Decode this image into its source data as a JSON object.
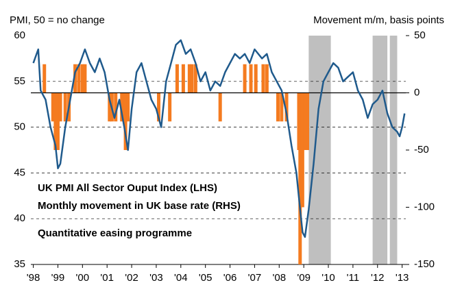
{
  "chart_data": {
    "type": "combo",
    "y_label": "PMI, 50 = no change",
    "y2_label": "Movement m/m, basis points",
    "xlim": [
      1997.9,
      2013.15
    ],
    "xticks": [
      {
        "value": 1998,
        "label": "'98"
      },
      {
        "value": 1999,
        "label": "'99"
      },
      {
        "value": 2000,
        "label": "'00"
      },
      {
        "value": 2001,
        "label": "'01"
      },
      {
        "value": 2002,
        "label": "'02"
      },
      {
        "value": 2003,
        "label": "'03"
      },
      {
        "value": 2004,
        "label": "'04"
      },
      {
        "value": 2005,
        "label": "'05"
      },
      {
        "value": 2006,
        "label": "'06"
      },
      {
        "value": 2007,
        "label": "'07"
      },
      {
        "value": 2008,
        "label": "'08"
      },
      {
        "value": 2009,
        "label": "'09"
      },
      {
        "value": 2010,
        "label": "'10"
      },
      {
        "value": 2011,
        "label": "'11"
      },
      {
        "value": 2012,
        "label": "'12"
      },
      {
        "value": 2013,
        "label": "'13"
      }
    ],
    "ylim": [
      35,
      60
    ],
    "yticks": [
      35,
      40,
      45,
      50,
      55,
      60
    ],
    "y2lim": [
      -150,
      50
    ],
    "y2ticks": [
      -150,
      -100,
      -50,
      0,
      50
    ],
    "grid": true,
    "shaded": {
      "name": "Quantitative easing programme",
      "color": "#bfbfbf",
      "periods": [
        [
          2009.2,
          2010.1
        ],
        [
          2011.8,
          2012.4
        ],
        [
          2012.5,
          2012.8
        ]
      ]
    },
    "series": [
      {
        "name": "UK PMI All Sector Ouput Index (LHS)",
        "type": "line",
        "color": "#1f5a8c",
        "axis": "y",
        "x": [
          1998.0,
          1998.2,
          1998.3,
          1998.5,
          1998.7,
          1998.9,
          1999.0,
          1999.1,
          1999.3,
          1999.5,
          1999.7,
          1999.9,
          2000.1,
          2000.3,
          2000.5,
          2000.7,
          2000.9,
          2001.1,
          2001.3,
          2001.5,
          2001.7,
          2001.85,
          2002.0,
          2002.2,
          2002.4,
          2002.6,
          2002.8,
          2003.0,
          2003.2,
          2003.4,
          2003.6,
          2003.8,
          2004.0,
          2004.2,
          2004.4,
          2004.6,
          2004.8,
          2005.0,
          2005.2,
          2005.4,
          2005.6,
          2005.8,
          2006.0,
          2006.2,
          2006.4,
          2006.6,
          2006.8,
          2007.0,
          2007.3,
          2007.5,
          2007.7,
          2007.9,
          2008.1,
          2008.3,
          2008.5,
          2008.7,
          2008.85,
          2008.95,
          2009.05,
          2009.2,
          2009.4,
          2009.6,
          2009.8,
          2010.0,
          2010.2,
          2010.4,
          2010.6,
          2010.8,
          2011.0,
          2011.2,
          2011.4,
          2011.6,
          2011.8,
          2012.0,
          2012.2,
          2012.4,
          2012.6,
          2012.8,
          2012.9,
          2013.0,
          2013.1
        ],
        "values": [
          57,
          58.5,
          54,
          53,
          50,
          48,
          45.5,
          46,
          50,
          53,
          56,
          57,
          58.5,
          57,
          56,
          57.5,
          56,
          53,
          51,
          53,
          50,
          47.5,
          52,
          56,
          57,
          55,
          53,
          52,
          50,
          55,
          57,
          59,
          59.5,
          58,
          58.5,
          57,
          55,
          56,
          54,
          55,
          54.5,
          56,
          57,
          58,
          57.5,
          58,
          57,
          58.5,
          57.5,
          58,
          56,
          55,
          54,
          51.5,
          48,
          45,
          41,
          38.5,
          38,
          41,
          46,
          52,
          55,
          56,
          57,
          56.5,
          55,
          55.5,
          56,
          54,
          53,
          51,
          52.5,
          53,
          54,
          51.5,
          50,
          49.5,
          49,
          50,
          51.5
        ]
      },
      {
        "name": "Monthly movement in UK base rate (RHS)",
        "type": "bar",
        "color": "#f47b20",
        "axis": "y2",
        "x": [
          1998.45,
          1998.8,
          1998.9,
          1999.0,
          1999.1,
          1999.3,
          1999.45,
          1999.7,
          1999.85,
          2000.0,
          2000.1,
          2001.1,
          2001.2,
          2001.35,
          2001.6,
          2001.7,
          2001.75,
          2001.85,
          2003.1,
          2003.55,
          2003.85,
          2004.1,
          2004.35,
          2004.45,
          2004.6,
          2005.6,
          2006.6,
          2006.85,
          2007.05,
          2007.35,
          2007.5,
          2007.95,
          2008.1,
          2008.3,
          2008.8,
          2008.85,
          2008.95,
          2009.05,
          2009.15
        ],
        "values": [
          25,
          -25,
          -50,
          -50,
          -25,
          -25,
          -25,
          25,
          25,
          25,
          25,
          -25,
          -25,
          -25,
          -25,
          -25,
          -50,
          -25,
          -25,
          -25,
          25,
          25,
          25,
          25,
          25,
          -25,
          25,
          25,
          25,
          25,
          25,
          -25,
          -25,
          -25,
          -50,
          -150,
          -100,
          -50,
          -50
        ]
      }
    ]
  }
}
